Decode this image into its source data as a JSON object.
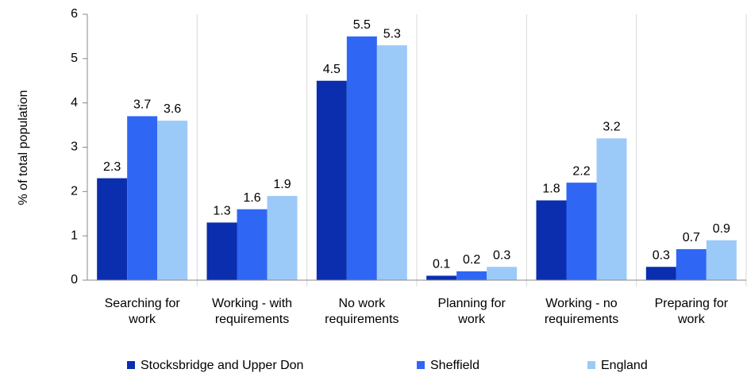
{
  "chart_data": {
    "type": "bar",
    "y_label": "% of total population",
    "categories": [
      "Searching for work",
      "Working - with requirements",
      "No work requirements",
      "Planning for work",
      "Working - no requirements",
      "Preparing for work"
    ],
    "series": [
      {
        "name": "Stocksbridge and Upper Don",
        "color": "#0a2eae",
        "values": [
          2.3,
          1.3,
          4.5,
          0.1,
          1.8,
          0.3
        ]
      },
      {
        "name": "Sheffield",
        "color": "#2f66f4",
        "values": [
          3.7,
          1.6,
          5.5,
          0.2,
          2.2,
          0.7
        ]
      },
      {
        "name": "England",
        "color": "#9ccaf8",
        "values": [
          3.6,
          1.9,
          5.3,
          0.3,
          3.2,
          0.9
        ]
      }
    ],
    "ylim": [
      0,
      6
    ],
    "yticks": [
      0,
      1,
      2,
      3,
      4,
      5,
      6
    ],
    "grid": false,
    "legend": "bottom"
  }
}
